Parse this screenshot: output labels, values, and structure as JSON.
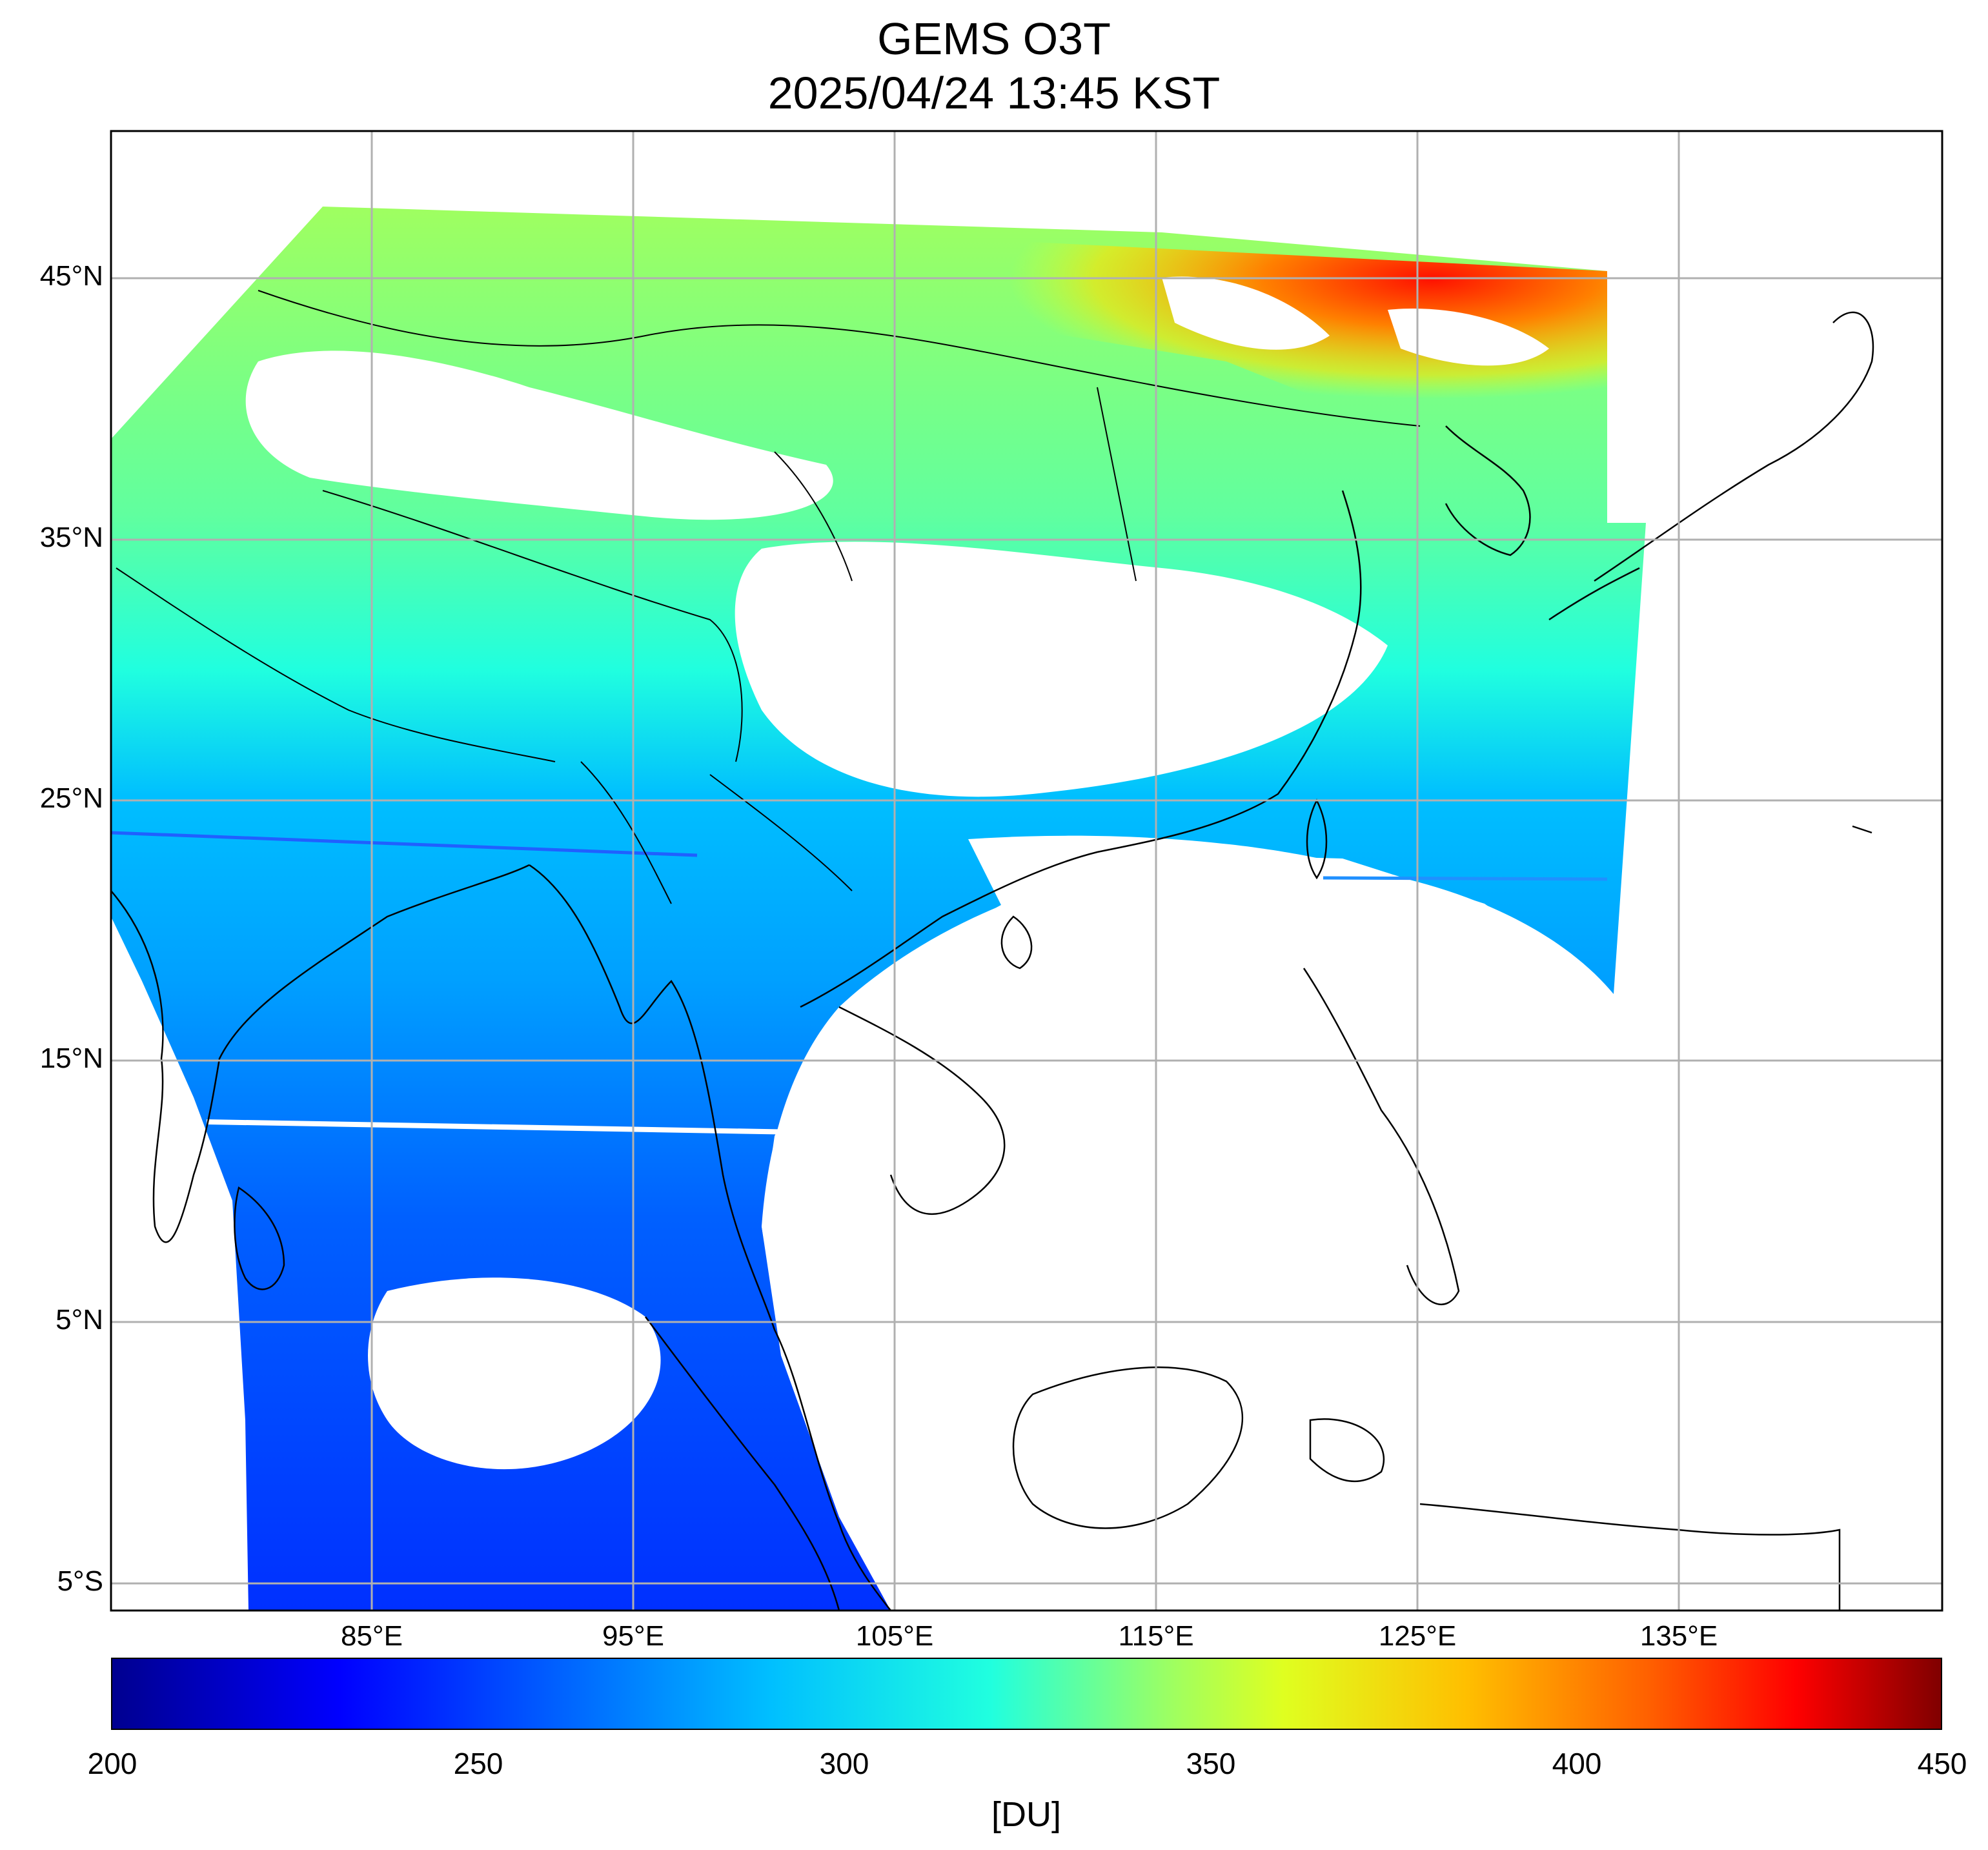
{
  "title": {
    "line1": "GEMS O3T",
    "line2": "2025/04/24 13:45 KST"
  },
  "map": {
    "lat_labels": [
      "45°N",
      "35°N",
      "25°N",
      "15°N",
      "5°N",
      "5°S"
    ],
    "lon_labels": [
      "85°E",
      "95°E",
      "105°E",
      "115°E",
      "125°E",
      "135°E"
    ],
    "lat_range": [
      -6,
      51.5
    ],
    "lon_range": [
      75,
      145
    ],
    "gridlines": true
  },
  "colorbar": {
    "ticks": [
      "200",
      "250",
      "300",
      "350",
      "400",
      "450"
    ],
    "range": [
      200,
      450
    ],
    "units": "[DU]",
    "colormap": [
      "#00008f",
      "#0000ff",
      "#00bfff",
      "#20ffdf",
      "#60ff9f",
      "#dfff20",
      "#ffbf00",
      "#ff6000",
      "#ff0000",
      "#7f0000"
    ]
  },
  "chart_data": {
    "type": "heatmap",
    "title": "GEMS O3T\n2025/04/24 13:45 KST",
    "xlabel": "",
    "ylabel": "",
    "xlim": [
      75,
      145
    ],
    "ylim": [
      -6,
      51.5
    ],
    "colorbar_label": "[DU]",
    "zlim": [
      200,
      450
    ]
  }
}
